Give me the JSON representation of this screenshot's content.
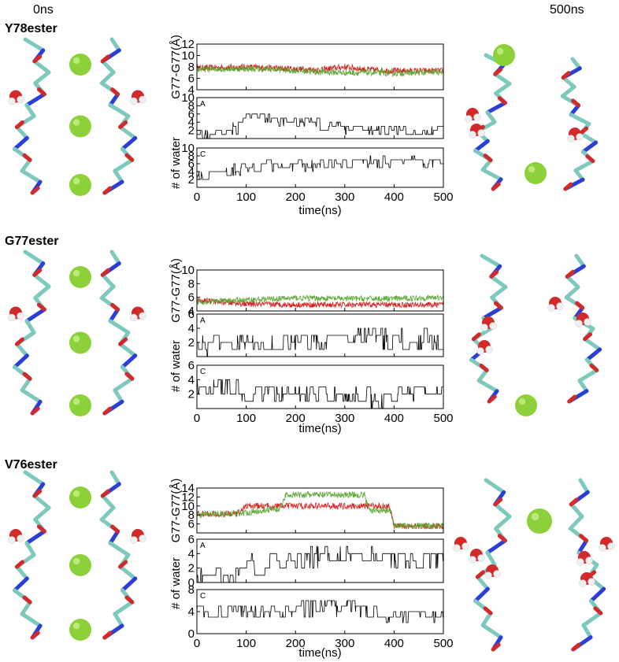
{
  "headers": {
    "left": "0ns",
    "right": "500ns"
  },
  "panels": [
    {
      "id": "y78",
      "label": "Y78ester"
    },
    {
      "id": "g77",
      "label": "G77ester"
    },
    {
      "id": "v76",
      "label": "V76ester"
    }
  ],
  "chart_data": [
    {
      "type": "line",
      "panel": "Y78ester",
      "xlabel": "time(ns)",
      "xlim": [
        0,
        500
      ],
      "xticks": [
        0,
        100,
        200,
        300,
        400,
        500
      ],
      "subplots": [
        {
          "ylabel": "G77-G77(Å)",
          "ylim": [
            4,
            12
          ],
          "yticks": [
            4,
            8,
            12
          ],
          "yticks_shown": [
            4,
            6,
            8,
            10,
            12
          ],
          "series": [
            {
              "color": "#d62020",
              "anchors": [
                [
                  0,
                  7.8
                ],
                [
                  100,
                  8.0
                ],
                [
                  150,
                  7.8
                ],
                [
                  250,
                  7.5
                ],
                [
                  300,
                  8.0
                ],
                [
                  350,
                  7.5
                ],
                [
                  400,
                  7.3
                ],
                [
                  500,
                  7.3
                ]
              ]
            },
            {
              "color": "#5aa832",
              "anchors": [
                [
                  0,
                  7.6
                ],
                [
                  100,
                  7.7
                ],
                [
                  150,
                  7.6
                ],
                [
                  250,
                  7.1
                ],
                [
                  300,
                  7.0
                ],
                [
                  350,
                  7.0
                ],
                [
                  400,
                  6.9
                ],
                [
                  500,
                  7.1
                ]
              ]
            }
          ]
        },
        {
          "panel_letter": "A",
          "ylabel": "",
          "ylim": [
            0,
            10
          ],
          "yticks_shown": [
            2,
            4,
            6,
            8,
            10
          ],
          "series": [
            {
              "color": "#000000",
              "anchors": [
                [
                  0,
                  1
                ],
                [
                  40,
                  1.5
                ],
                [
                  90,
                  3
                ],
                [
                  100,
                  7
                ],
                [
                  120,
                  5.5
                ],
                [
                  160,
                  4
                ],
                [
                  240,
                  4
                ],
                [
                  250,
                  3
                ],
                [
                  300,
                  2.5
                ],
                [
                  400,
                  2
                ],
                [
                  500,
                  2
                ]
              ]
            }
          ]
        },
        {
          "panel_letter": "C",
          "ylabel": "",
          "ylim": [
            0,
            10
          ],
          "yticks_shown": [
            2,
            4,
            6,
            8,
            10
          ],
          "series": [
            {
              "color": "#000000",
              "anchors": [
                [
                  0,
                  2.5
                ],
                [
                  50,
                  4
                ],
                [
                  100,
                  5
                ],
                [
                  200,
                  5.5
                ],
                [
                  300,
                  6
                ],
                [
                  400,
                  6.5
                ],
                [
                  500,
                  6.5
                ]
              ]
            }
          ]
        }
      ],
      "shared_ylabel": "# of water"
    },
    {
      "type": "line",
      "panel": "G77ester",
      "xlabel": "time(ns)",
      "xlim": [
        0,
        500
      ],
      "xticks": [
        0,
        100,
        200,
        300,
        400,
        500
      ],
      "subplots": [
        {
          "ylabel": "G77-G77(Å)",
          "ylim": [
            4,
            10
          ],
          "yticks_shown": [
            4,
            6,
            8,
            10
          ],
          "series": [
            {
              "color": "#d62020",
              "anchors": [
                [
                  0,
                  5.6
                ],
                [
                  100,
                  5.0
                ],
                [
                  200,
                  4.9
                ],
                [
                  300,
                  4.9
                ],
                [
                  400,
                  4.9
                ],
                [
                  500,
                  4.9
                ]
              ]
            },
            {
              "color": "#5aa832",
              "anchors": [
                [
                  0,
                  5.3
                ],
                [
                  100,
                  5.6
                ],
                [
                  200,
                  5.9
                ],
                [
                  300,
                  5.8
                ],
                [
                  400,
                  5.8
                ],
                [
                  500,
                  6.0
                ]
              ]
            }
          ]
        },
        {
          "panel_letter": "A",
          "ylabel": "",
          "ylim": [
            0,
            6
          ],
          "yticks_shown": [
            2,
            4,
            6
          ],
          "series": [
            {
              "color": "#000000",
              "anchors": [
                [
                  0,
                  2
                ],
                [
                  20,
                  1
                ],
                [
                  30,
                  2
                ],
                [
                  80,
                  2
                ],
                [
                  300,
                  2
                ],
                [
                  320,
                  3
                ],
                [
                  500,
                  2
                ]
              ]
            }
          ]
        },
        {
          "panel_letter": "C",
          "ylabel": "",
          "ylim": [
            0,
            6
          ],
          "yticks_shown": [
            2,
            4,
            6
          ],
          "series": [
            {
              "color": "#000000",
              "anchors": [
                [
                  0,
                  3
                ],
                [
                  30,
                  3
                ],
                [
                  60,
                  3
                ],
                [
                  100,
                  2
                ],
                [
                  340,
                  2
                ],
                [
                  350,
                  1
                ],
                [
                  400,
                  1
                ],
                [
                  410,
                  2
                ],
                [
                  500,
                  2
                ]
              ]
            }
          ]
        }
      ],
      "shared_ylabel": "# of water"
    },
    {
      "type": "line",
      "panel": "V76ester",
      "xlabel": "time(ns)",
      "xlim": [
        0,
        500
      ],
      "xticks": [
        0,
        100,
        200,
        300,
        400,
        500
      ],
      "subplots": [
        {
          "ylabel": "G77-G77(Å)",
          "ylim": [
            4,
            14
          ],
          "yticks_shown": [
            6,
            8,
            10,
            12,
            14
          ],
          "series": [
            {
              "color": "#d62020",
              "anchors": [
                [
                  0,
                  8.2
                ],
                [
                  80,
                  8.2
                ],
                [
                  100,
                  10
                ],
                [
                  200,
                  10
                ],
                [
                  390,
                  10
                ],
                [
                  400,
                  5.5
                ],
                [
                  500,
                  5.5
                ]
              ]
            },
            {
              "color": "#5aa832",
              "anchors": [
                [
                  0,
                  8.0
                ],
                [
                  100,
                  8.5
                ],
                [
                  170,
                  9.5
                ],
                [
                  180,
                  12.5
                ],
                [
                  340,
                  12.5
                ],
                [
                  350,
                  9
                ],
                [
                  395,
                  9
                ],
                [
                  400,
                  5.6
                ],
                [
                  500,
                  5.6
                ]
              ]
            }
          ]
        },
        {
          "panel_letter": "A",
          "ylabel": "",
          "ylim": [
            0,
            6
          ],
          "yticks_shown": [
            0,
            2,
            4,
            6
          ],
          "series": [
            {
              "color": "#000000",
              "anchors": [
                [
                  0,
                  0.5
                ],
                [
                  80,
                  1
                ],
                [
                  100,
                  2
                ],
                [
                  200,
                  3
                ],
                [
                  260,
                  4
                ],
                [
                  330,
                  4
                ],
                [
                  400,
                  3
                ],
                [
                  500,
                  3
                ]
              ]
            }
          ]
        },
        {
          "panel_letter": "C",
          "ylabel": "",
          "ylim": [
            0,
            8
          ],
          "yticks_shown": [
            0,
            4,
            8
          ],
          "series": [
            {
              "color": "#000000",
              "anchors": [
                [
                  0,
                  4
                ],
                [
                  100,
                  4
                ],
                [
                  200,
                  4
                ],
                [
                  300,
                  5
                ],
                [
                  350,
                  4
                ],
                [
                  400,
                  3
                ],
                [
                  500,
                  3
                ]
              ]
            }
          ]
        }
      ],
      "shared_ylabel": "# of water"
    }
  ]
}
